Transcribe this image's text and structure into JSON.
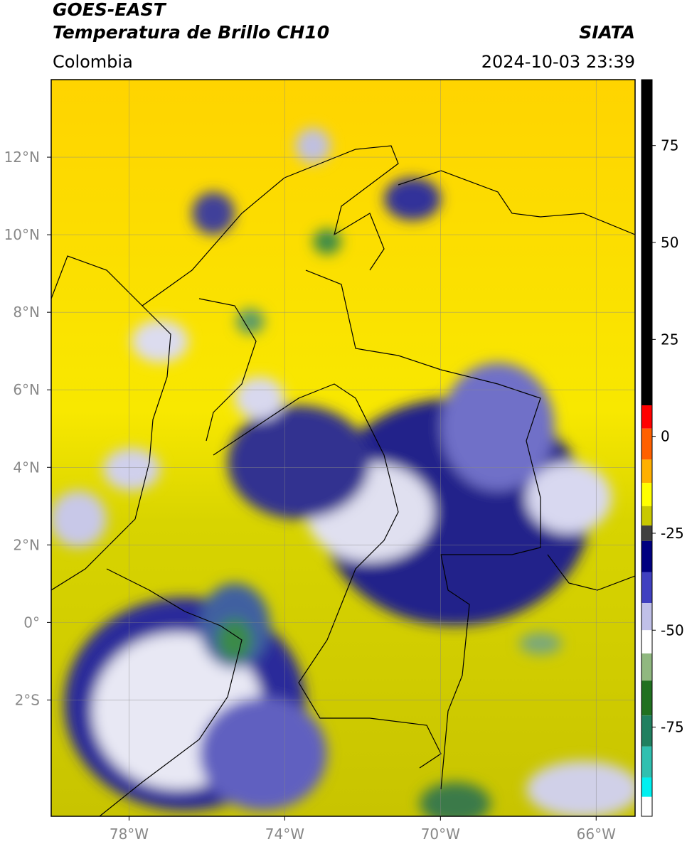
{
  "header": {
    "title": "GOES-EAST",
    "subtitle": "Temperatura de Brillo CH10",
    "region": "Colombia",
    "source": "SIATA",
    "timestamp": "2024-10-03 23:39"
  },
  "chart_data": {
    "type": "map",
    "xlim": [
      -80,
      -65
    ],
    "ylim": [
      -5,
      14
    ],
    "xticks": [
      {
        "value": -78,
        "label": "78°W"
      },
      {
        "value": -74,
        "label": "74°W"
      },
      {
        "value": -70,
        "label": "70°W"
      },
      {
        "value": -66,
        "label": "66°W"
      }
    ],
    "yticks": [
      {
        "value": 12,
        "label": "12°N"
      },
      {
        "value": 10,
        "label": "10°N"
      },
      {
        "value": 8,
        "label": "8°N"
      },
      {
        "value": 6,
        "label": "6°N"
      },
      {
        "value": 4,
        "label": "4°N"
      },
      {
        "value": 2,
        "label": "2°N"
      },
      {
        "value": 0,
        "label": "0°"
      },
      {
        "value": -2,
        "label": "2°S"
      }
    ],
    "grid": true,
    "colorbar": {
      "lim": [
        -98,
        92
      ],
      "ticks": [
        75,
        50,
        25,
        0,
        -25,
        -50,
        -75
      ],
      "stops": [
        {
          "value": 92,
          "color": "#000000"
        },
        {
          "value": 8,
          "color": "#ff0000"
        },
        {
          "value": 2,
          "color": "#ff6000"
        },
        {
          "value": -6,
          "color": "#ffb000"
        },
        {
          "value": -12,
          "color": "#ffff00"
        },
        {
          "value": -18,
          "color": "#c8c800"
        },
        {
          "value": -23,
          "color": "#404040"
        },
        {
          "value": -27,
          "color": "#000080"
        },
        {
          "value": -35,
          "color": "#4040c0"
        },
        {
          "value": -43,
          "color": "#c0c0e8"
        },
        {
          "value": -50,
          "color": "#ffffff"
        },
        {
          "value": -56,
          "color": "#90b880"
        },
        {
          "value": -63,
          "color": "#207020"
        },
        {
          "value": -72,
          "color": "#208060"
        },
        {
          "value": -80,
          "color": "#30c0b0"
        },
        {
          "value": -88,
          "color": "#00f0f0"
        },
        {
          "value": -93,
          "color": "#ffffff"
        }
      ]
    }
  }
}
